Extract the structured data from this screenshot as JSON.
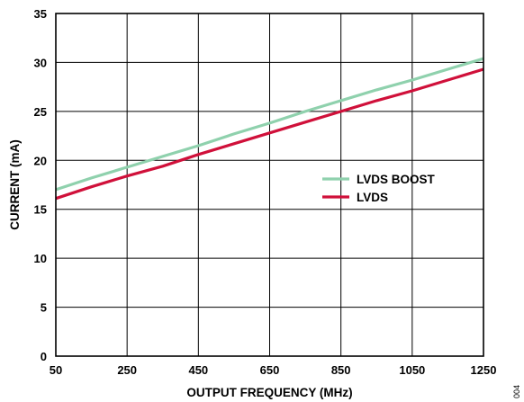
{
  "chart_data": {
    "type": "line",
    "title": "",
    "xlabel": "OUTPUT FREQUENCY (MHz)",
    "ylabel": "CURRENT (mA)",
    "xlim": [
      50,
      1250
    ],
    "ylim": [
      0,
      35
    ],
    "x_ticks": [
      50,
      250,
      450,
      650,
      850,
      1050,
      1250
    ],
    "y_ticks": [
      0,
      5,
      10,
      15,
      20,
      25,
      30,
      35
    ],
    "grid": true,
    "legend_position": "center-right",
    "series": [
      {
        "name": "LVDS BOOST",
        "color": "#8fd1ad",
        "x": [
          50,
          150,
          250,
          350,
          450,
          550,
          650,
          750,
          850,
          950,
          1050,
          1150,
          1250
        ],
        "y": [
          17.0,
          18.2,
          19.3,
          20.4,
          21.5,
          22.7,
          23.8,
          25.0,
          26.1,
          27.2,
          28.2,
          29.3,
          30.4
        ]
      },
      {
        "name": "LVDS",
        "color": "#d0103a",
        "x": [
          50,
          150,
          250,
          350,
          450,
          550,
          650,
          750,
          850,
          950,
          1050,
          1150,
          1250
        ],
        "y": [
          16.1,
          17.3,
          18.4,
          19.4,
          20.6,
          21.7,
          22.8,
          23.9,
          25.0,
          26.1,
          27.1,
          28.2,
          29.3
        ]
      }
    ]
  },
  "figure_code": "004"
}
